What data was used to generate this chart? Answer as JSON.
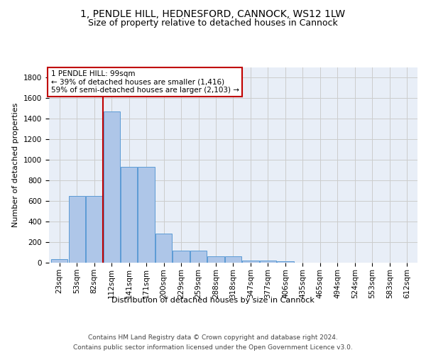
{
  "title_line1": "1, PENDLE HILL, HEDNESFORD, CANNOCK, WS12 1LW",
  "title_line2": "Size of property relative to detached houses in Cannock",
  "xlabel": "Distribution of detached houses by size in Cannock",
  "ylabel": "Number of detached properties",
  "categories": [
    "23sqm",
    "53sqm",
    "82sqm",
    "112sqm",
    "141sqm",
    "171sqm",
    "200sqm",
    "229sqm",
    "259sqm",
    "288sqm",
    "318sqm",
    "347sqm",
    "377sqm",
    "406sqm",
    "435sqm",
    "465sqm",
    "494sqm",
    "524sqm",
    "553sqm",
    "583sqm",
    "612sqm"
  ],
  "values": [
    38,
    650,
    650,
    1470,
    935,
    935,
    285,
    120,
    120,
    62,
    62,
    22,
    22,
    12,
    0,
    0,
    0,
    0,
    0,
    0,
    0
  ],
  "bar_color": "#aec6e8",
  "bar_edge_color": "#5b9bd5",
  "line_color": "#c00000",
  "line_x_index": 2.5,
  "annotation_text": "1 PENDLE HILL: 99sqm\n← 39% of detached houses are smaller (1,416)\n59% of semi-detached houses are larger (2,103) →",
  "annotation_box_color": "#c00000",
  "ylim": [
    0,
    1900
  ],
  "yticks": [
    0,
    200,
    400,
    600,
    800,
    1000,
    1200,
    1400,
    1600,
    1800
  ],
  "grid_color": "#cccccc",
  "bg_color": "#e8eef7",
  "footer_line1": "Contains HM Land Registry data © Crown copyright and database right 2024.",
  "footer_line2": "Contains public sector information licensed under the Open Government Licence v3.0.",
  "title_fontsize": 10,
  "subtitle_fontsize": 9,
  "axis_label_fontsize": 8,
  "tick_fontsize": 7.5,
  "footer_fontsize": 6.5
}
